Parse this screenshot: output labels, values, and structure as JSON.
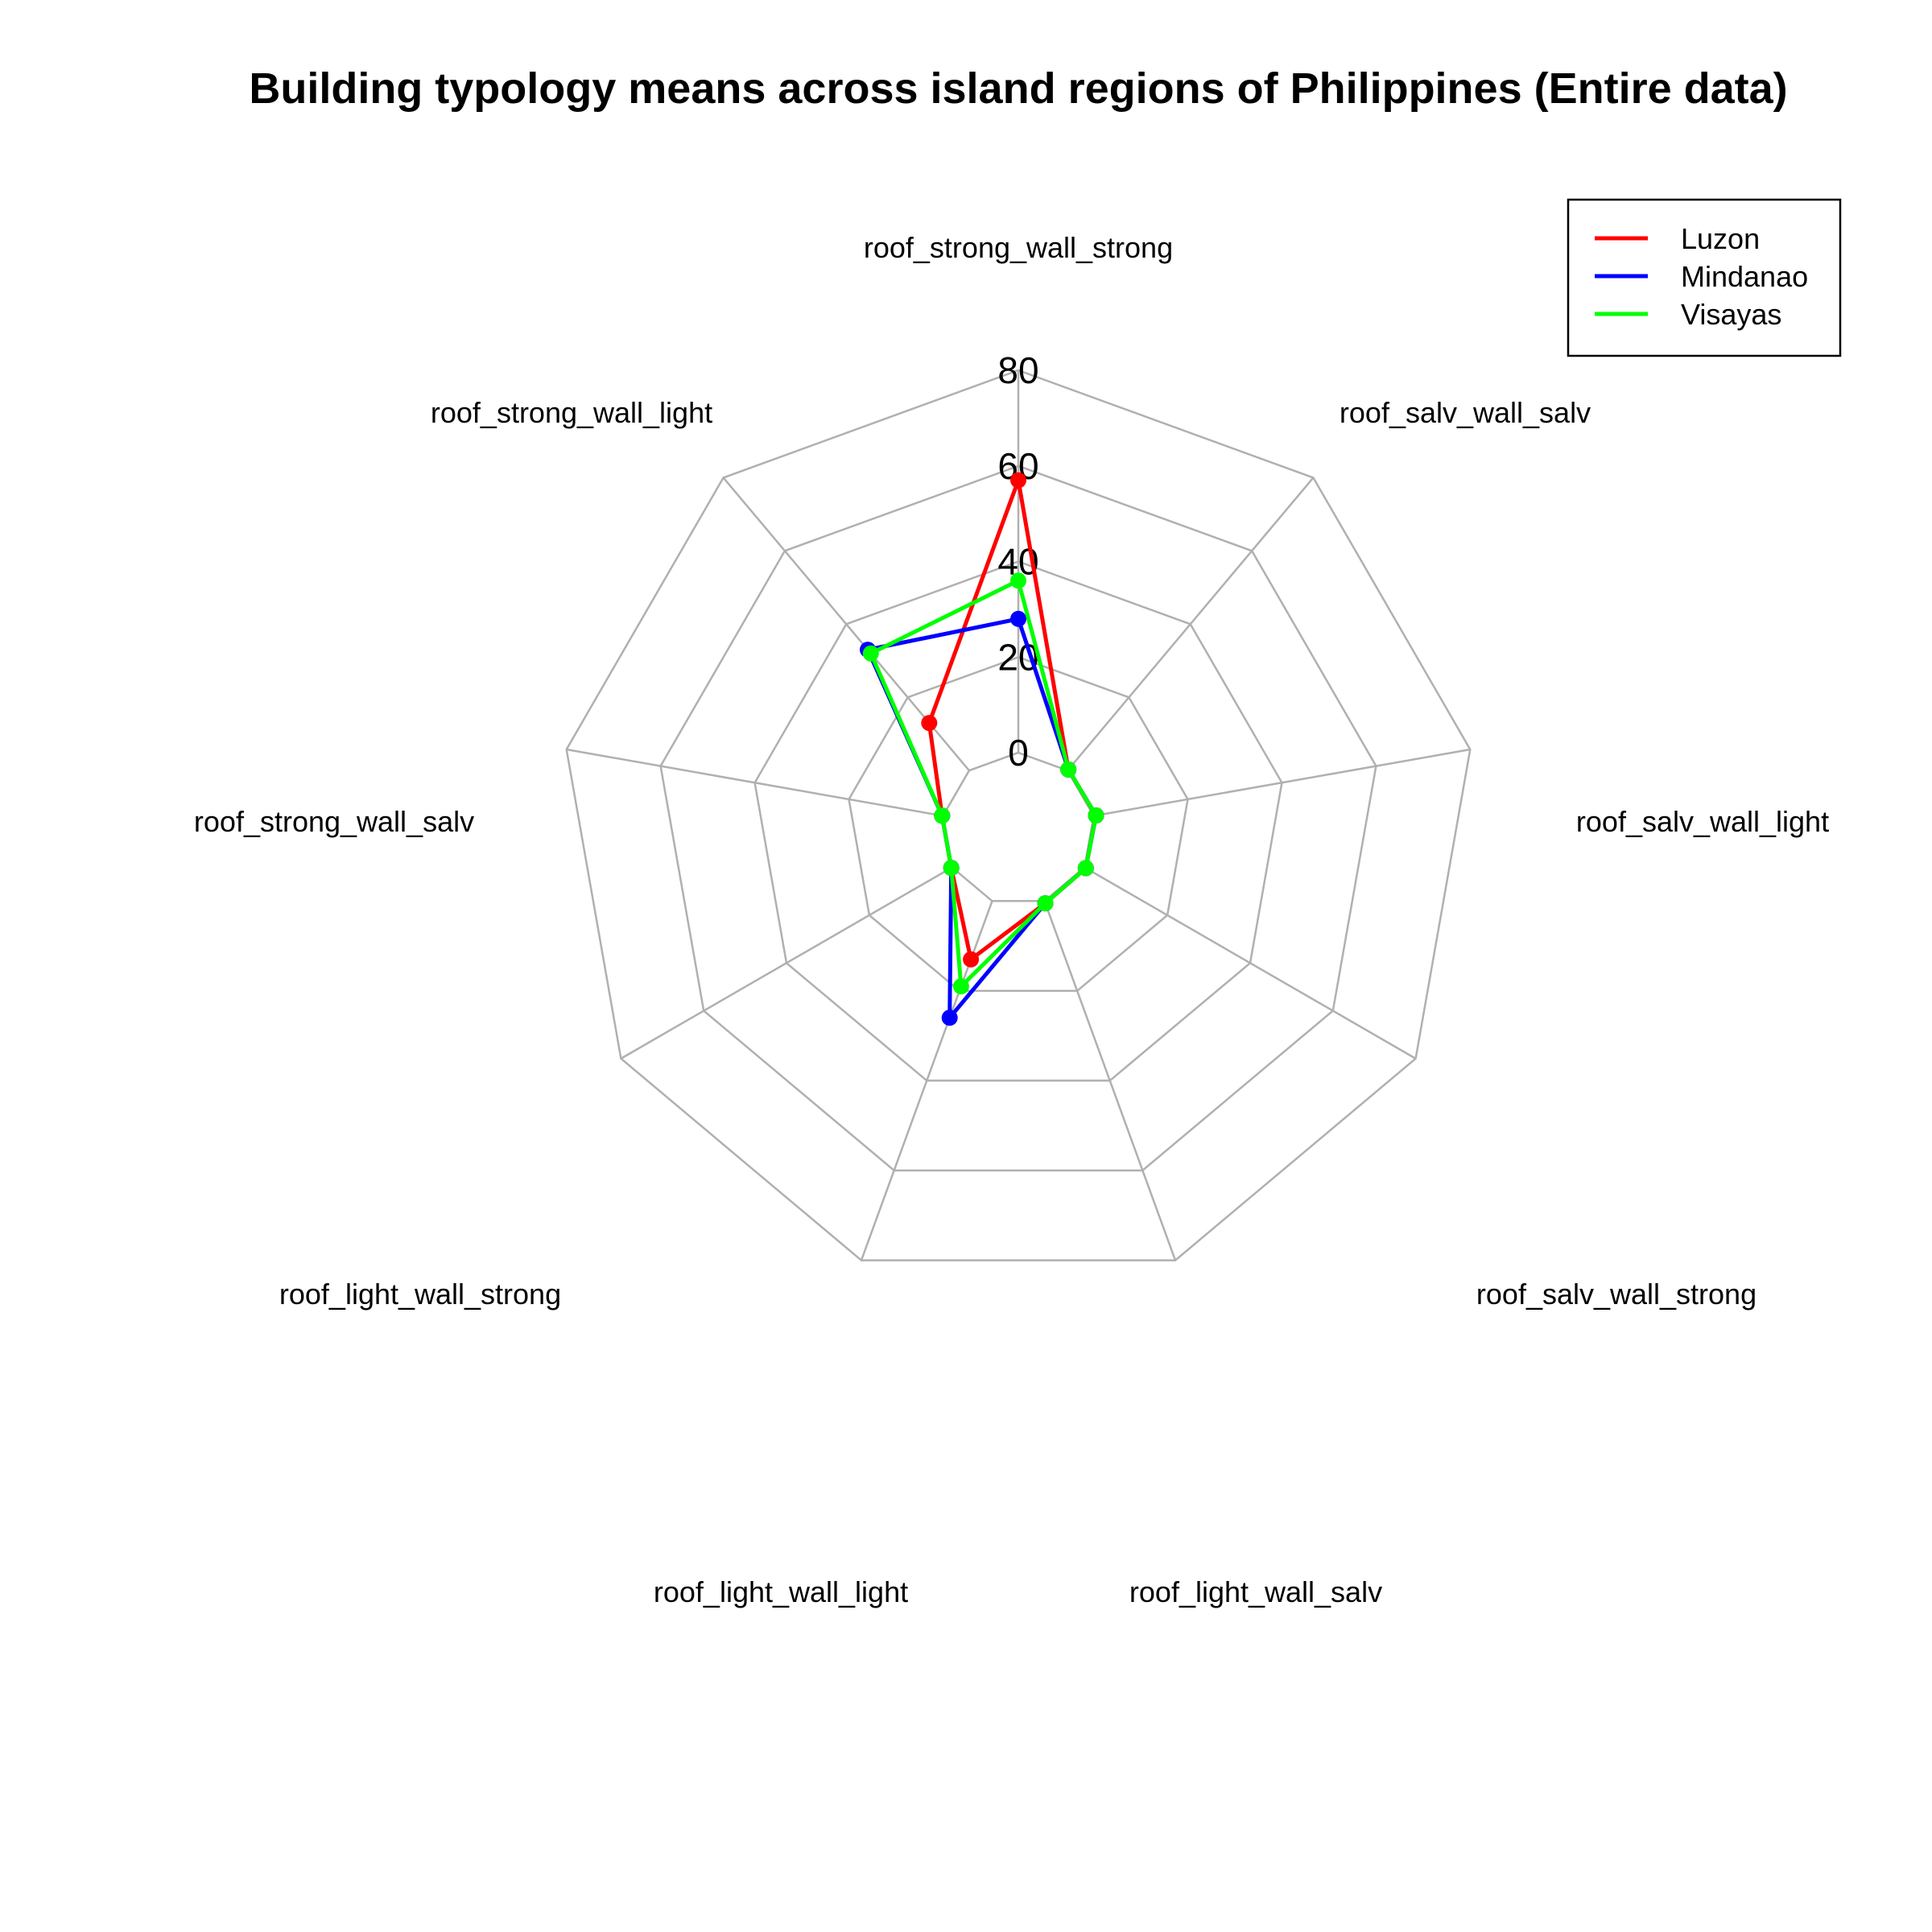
{
  "chart_data": {
    "type": "radar",
    "title": "Building typology means across island regions of Philippines (Entire data)",
    "axes": [
      "roof_strong_wall_strong",
      "roof_salv_wall_salv",
      "roof_salv_wall_light",
      "roof_salv_wall_strong",
      "roof_light_wall_salv",
      "roof_light_wall_light",
      "roof_light_wall_strong",
      "roof_strong_wall_salv",
      "roof_strong_wall_light"
    ],
    "rlim": [
      0,
      80
    ],
    "ticks": [
      0,
      20,
      40,
      60,
      80
    ],
    "tick_labels": [
      "0",
      "20",
      "40",
      "60",
      "80"
    ],
    "grid": true,
    "legend_position": "top-right",
    "series": [
      {
        "name": "Luzon",
        "color": "#ff0000",
        "values": [
          57,
          0.3,
          0.5,
          0.3,
          0.5,
          13,
          0.2,
          0.2,
          13
        ]
      },
      {
        "name": "Mindanao",
        "color": "#0000ff",
        "values": [
          28,
          0.3,
          0.5,
          0.3,
          0.5,
          26,
          0.2,
          0.2,
          33
        ]
      },
      {
        "name": "Visayas",
        "color": "#00ff00",
        "values": [
          36,
          0.3,
          0.5,
          0.3,
          0.5,
          19,
          0.2,
          0.2,
          32
        ]
      }
    ]
  }
}
